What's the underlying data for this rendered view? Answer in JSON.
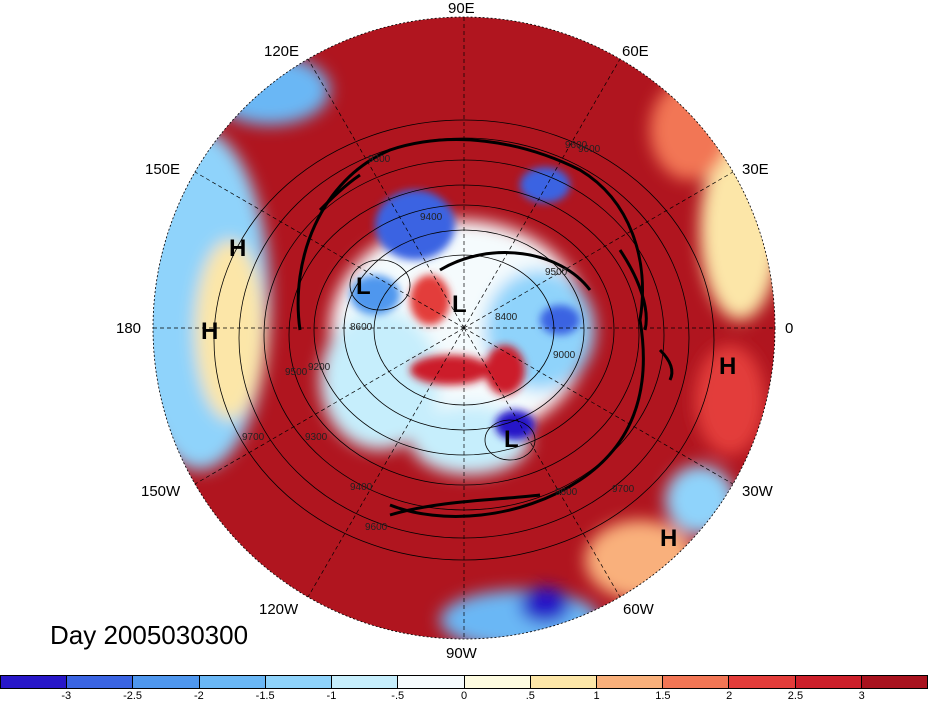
{
  "title": "Day 2005030300",
  "longitude_labels": {
    "e90": "90E",
    "e120": "120E",
    "e60": "60E",
    "e150": "150E",
    "e30": "30E",
    "w180": "180",
    "zero": "0",
    "w150": "150W",
    "w30": "30W",
    "w120": "120W",
    "w60": "60W",
    "w90": "90W"
  },
  "pressure_centers": [
    {
      "label": "H"
    },
    {
      "label": "H"
    },
    {
      "label": "H"
    },
    {
      "label": "H"
    },
    {
      "label": "L"
    },
    {
      "label": "L"
    },
    {
      "label": "L"
    }
  ],
  "contour_labels": [
    "9600",
    "9300",
    "9600",
    "9400",
    "8400",
    "9000",
    "8600",
    "9500",
    "9200",
    "9700",
    "9300",
    "9400",
    "9600",
    "9700",
    "9600",
    "9500"
  ],
  "colorbar": {
    "colors": [
      "#2817c8",
      "#3a64e2",
      "#4f97ee",
      "#6ab7f5",
      "#8fd3fb",
      "#c6eefc",
      "#f5fbfd",
      "#fdfbe0",
      "#fce6a8",
      "#f9b07b",
      "#f27655",
      "#e33c3a",
      "#cc1f2a",
      "#a8121e"
    ],
    "tick_labels": [
      "-3",
      "-2.5",
      "-2",
      "-1.5",
      "-1",
      "-.5",
      "0",
      ".5",
      "1",
      "1.5",
      "2",
      "2.5",
      "3"
    ]
  },
  "colors": {
    "background": "#ffffff",
    "dark_red": "#a8121e",
    "blue": "#2817c8"
  }
}
